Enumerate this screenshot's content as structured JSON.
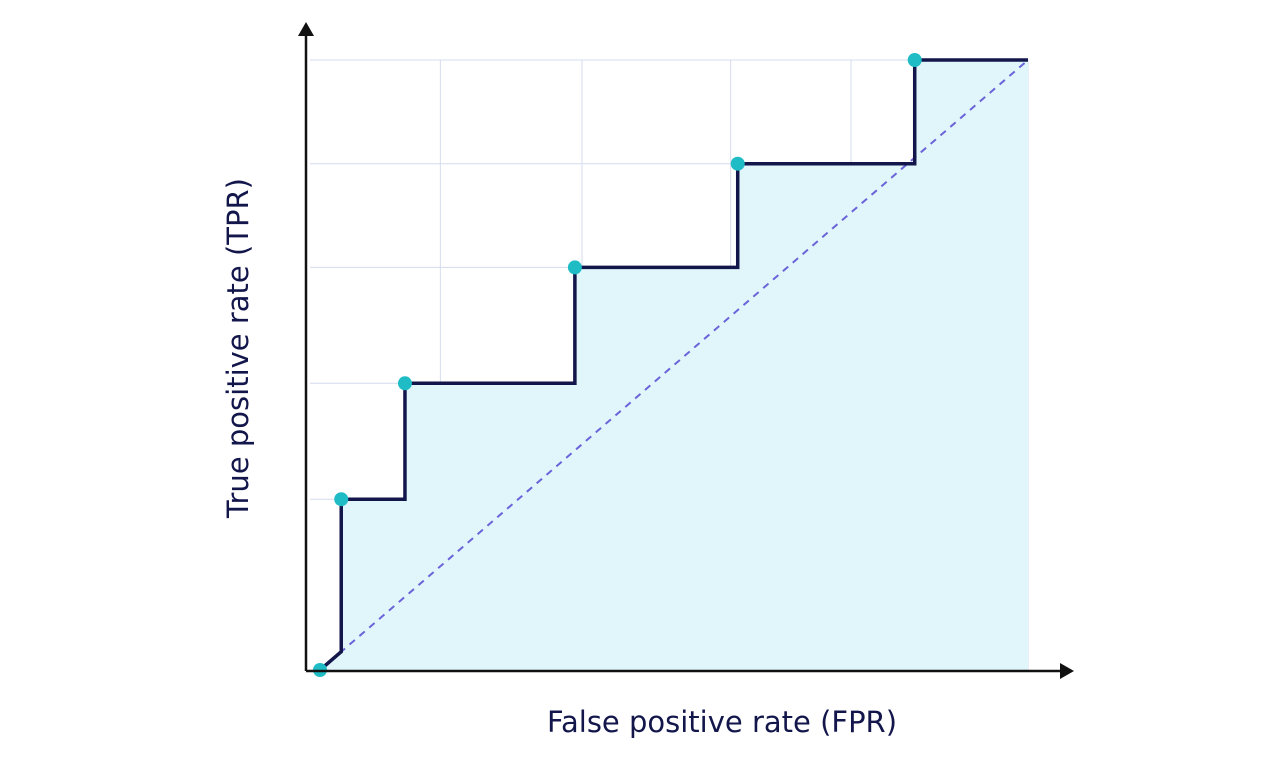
{
  "chart_data": {
    "type": "line",
    "title": "",
    "xlabel": "False positive rate (FPR)",
    "ylabel": "True positive rate (TPR)",
    "xlim": [
      0,
      1
    ],
    "ylim": [
      0,
      1
    ],
    "grid": true,
    "x_grid": [
      0.17,
      0.37,
      0.58,
      0.75
    ],
    "y_grid": [
      0.28,
      0.47,
      0.66,
      0.83,
      1.0
    ],
    "series": [
      {
        "type": "step",
        "x": [
          0.0,
          0.03,
          0.03,
          0.12,
          0.12,
          0.36,
          0.36,
          0.59,
          0.59,
          0.84,
          0.84,
          1.0
        ],
        "y": [
          0.0,
          0.03,
          0.28,
          0.28,
          0.47,
          0.47,
          0.66,
          0.66,
          0.83,
          0.83,
          1.0,
          1.0
        ]
      },
      {
        "type": "reference-diagonal",
        "x": [
          0.0,
          1.0
        ],
        "y": [
          0.0,
          1.0
        ]
      }
    ],
    "markers": {
      "x": [
        0.0,
        0.03,
        0.12,
        0.36,
        0.59,
        0.84
      ],
      "y": [
        0.0,
        0.28,
        0.47,
        0.66,
        0.83,
        1.0
      ]
    },
    "colors": {
      "curve": "#12164a",
      "marker": "#1fbcc6",
      "fill": "#e0f6fb",
      "diagonal": "#6b63d9",
      "grid": "#d6dcee",
      "axis": "#111111"
    }
  }
}
